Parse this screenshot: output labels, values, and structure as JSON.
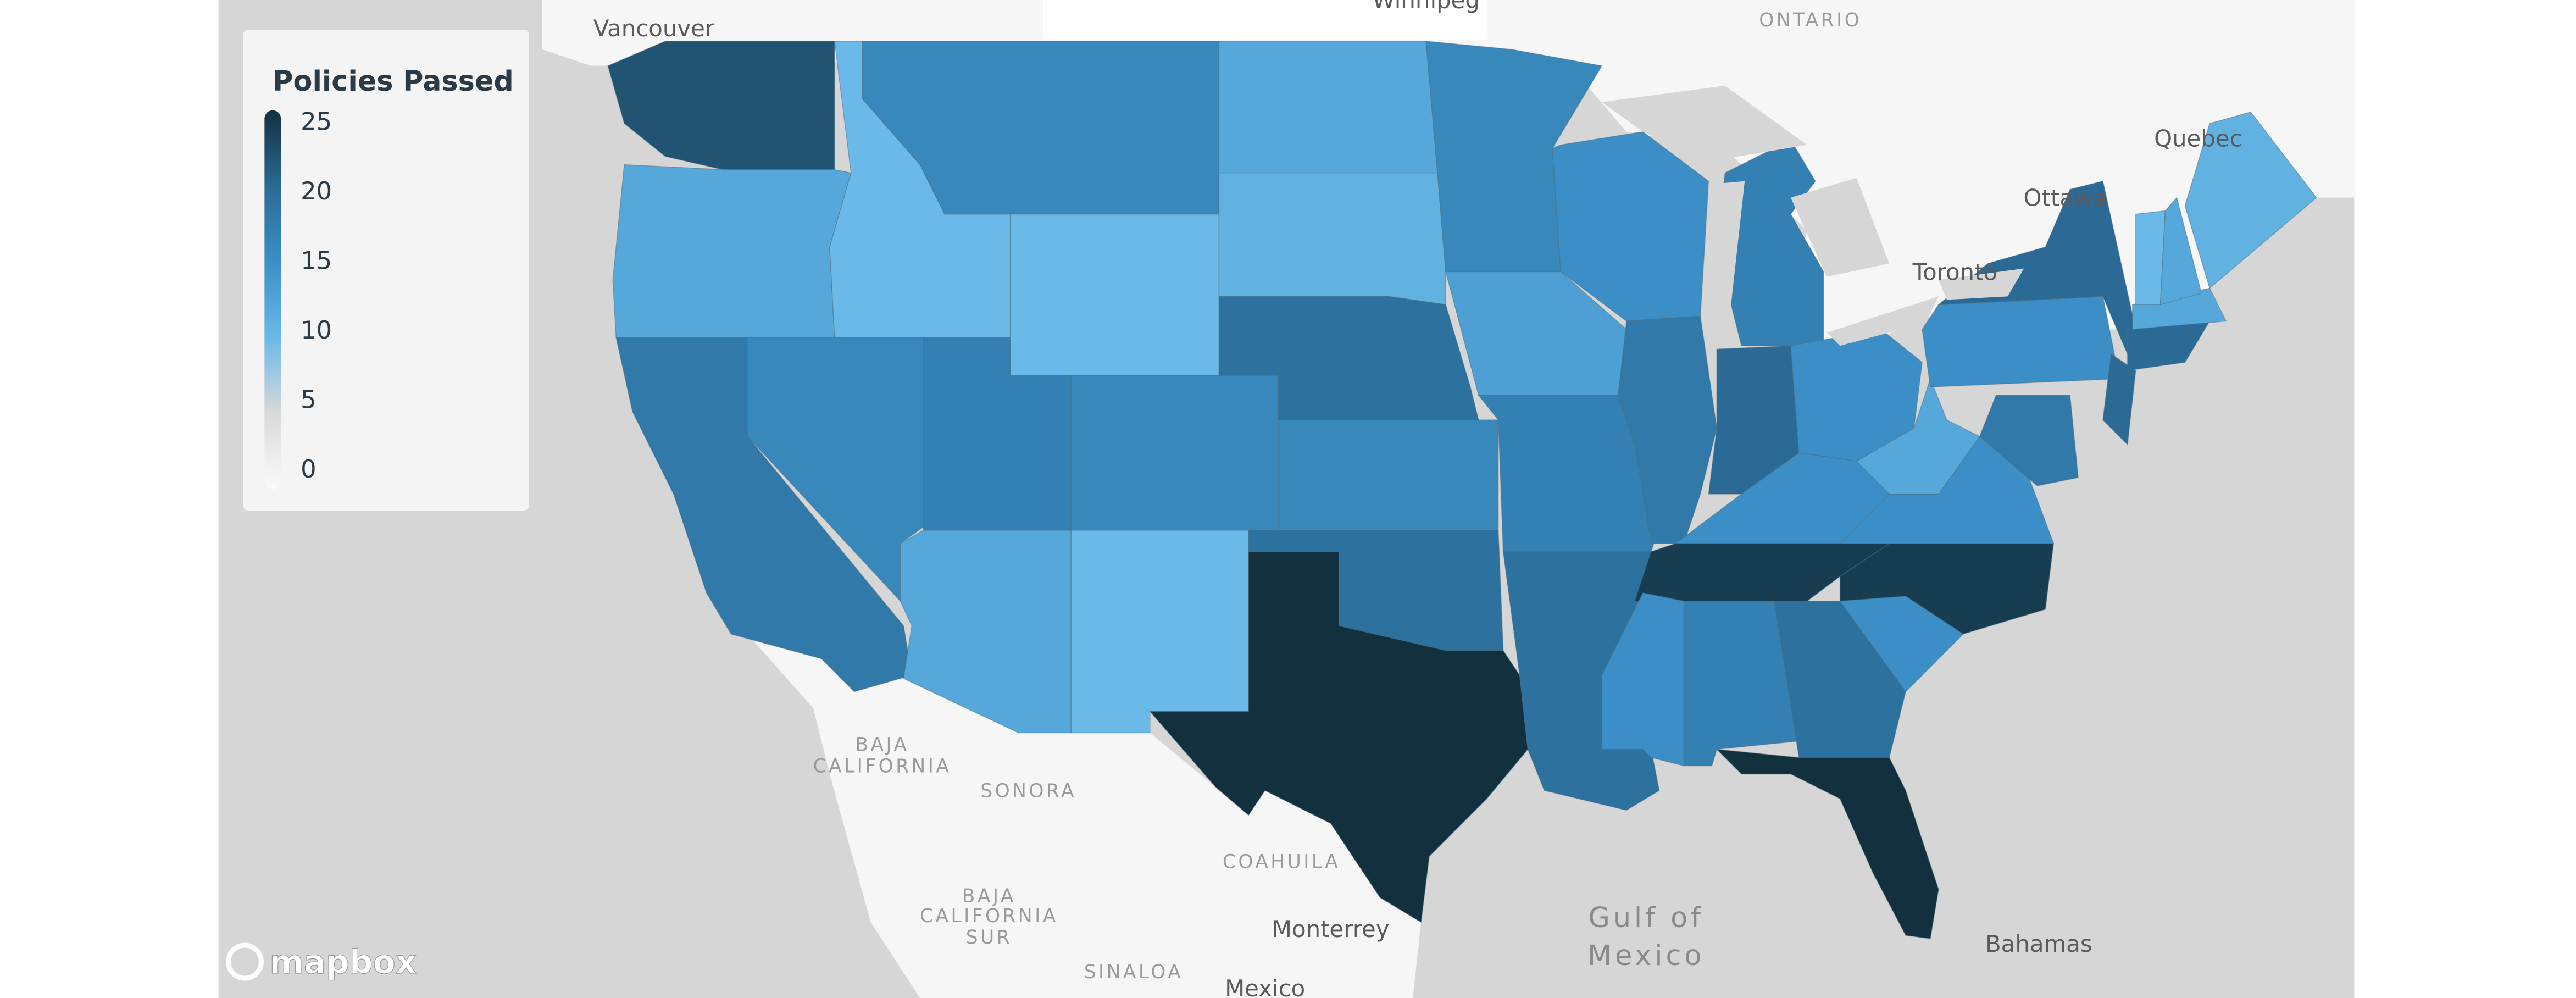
{
  "legend": {
    "title": "Policies Passed",
    "ticks": [
      0,
      5,
      10,
      15,
      20,
      25
    ],
    "colors": [
      "#fafafa",
      "#d9d9d9",
      "#6ab9e8",
      "#3b8fc6",
      "#2a6a94",
      "#13303f"
    ]
  },
  "state_values": [
    22,
    12,
    18,
    10,
    16,
    16,
    10,
    17,
    12,
    16,
    10,
    12,
    11,
    19,
    16,
    19,
    25,
    16,
    13,
    17,
    19,
    19,
    15,
    18,
    17,
    20,
    15,
    15,
    24,
    15,
    17,
    19,
    25,
    15,
    24,
    15,
    12,
    15,
    20,
    18,
    20,
    20,
    12,
    10,
    12,
    11
  ],
  "map_labels": [
    "Vancouver",
    "Winnipeg",
    "ONTARIO",
    "Quebec",
    "Ottawa",
    "Toronto",
    "BAJA",
    "CALIFORNIA",
    "SONORA",
    "COAHUILA",
    "BAJA",
    "CALIFORNIA",
    "SUR",
    "SINALOA",
    "Monterrey",
    "Gulf of",
    "Mexico",
    "Mexico",
    "Bahamas"
  ],
  "attribution": "mapbox"
}
